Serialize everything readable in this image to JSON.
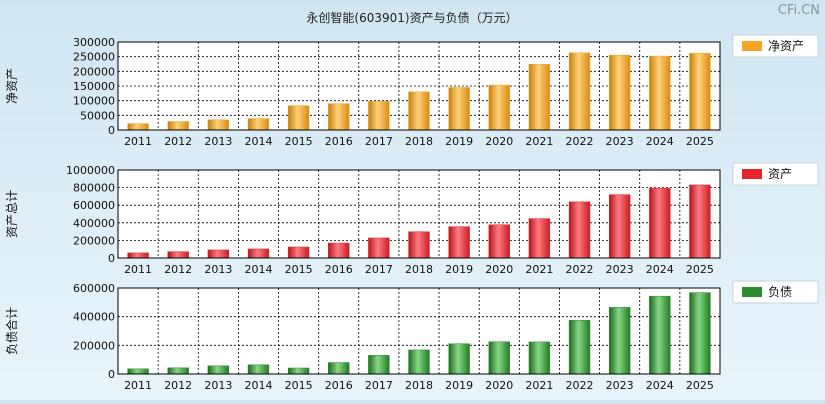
{
  "title": "永创智能(603901)资产与负债（万元）",
  "watermark": "CFi.CN",
  "chart_data": [
    {
      "type": "bar",
      "ylabel": "净资产",
      "legend": "净资产",
      "legend_position": "right",
      "grid": true,
      "color": "#f5a623",
      "categories": [
        "2011",
        "2012",
        "2013",
        "2014",
        "2015",
        "2016",
        "2017",
        "2018",
        "2019",
        "2020",
        "2021",
        "2022",
        "2023",
        "2024",
        "2025"
      ],
      "values": [
        22000,
        29000,
        35000,
        39000,
        83000,
        90000,
        98000,
        130000,
        145000,
        153000,
        224000,
        263000,
        255000,
        252000,
        262000
      ],
      "ylim": [
        0,
        300000
      ],
      "yticks": [
        0,
        50000,
        100000,
        150000,
        200000,
        250000,
        300000
      ],
      "ytick_labels": [
        "0",
        "50000",
        "100000",
        "150000",
        "200000",
        "250000",
        "300000"
      ]
    },
    {
      "type": "bar",
      "ylabel": "资产总计",
      "legend": "资产",
      "legend_position": "right",
      "grid": true,
      "color": "#e8232a",
      "categories": [
        "2011",
        "2012",
        "2013",
        "2014",
        "2015",
        "2016",
        "2017",
        "2018",
        "2019",
        "2020",
        "2021",
        "2022",
        "2023",
        "2024",
        "2025"
      ],
      "values": [
        58000,
        72000,
        92000,
        103000,
        125000,
        170000,
        228000,
        298000,
        356000,
        378000,
        448000,
        638000,
        720000,
        795000,
        830000
      ],
      "ylim": [
        0,
        1000000
      ],
      "yticks": [
        0,
        200000,
        400000,
        600000,
        800000,
        1000000
      ],
      "ytick_labels": [
        "0",
        "200000",
        "400000",
        "600000",
        "800000",
        "1000000"
      ]
    },
    {
      "type": "bar",
      "ylabel": "负债合计",
      "legend": "负债",
      "legend_position": "right",
      "grid": true,
      "color": "#2e8b2e",
      "categories": [
        "2011",
        "2012",
        "2013",
        "2014",
        "2015",
        "2016",
        "2017",
        "2018",
        "2019",
        "2020",
        "2021",
        "2022",
        "2023",
        "2024",
        "2025"
      ],
      "values": [
        36000,
        43000,
        57000,
        64000,
        42000,
        80000,
        130000,
        168000,
        211000,
        225000,
        224000,
        375000,
        465000,
        543000,
        568000
      ],
      "ylim": [
        0,
        600000
      ],
      "yticks": [
        0,
        200000,
        400000,
        600000
      ],
      "ytick_labels": [
        "0",
        "200000",
        "400000",
        "600000"
      ]
    }
  ]
}
